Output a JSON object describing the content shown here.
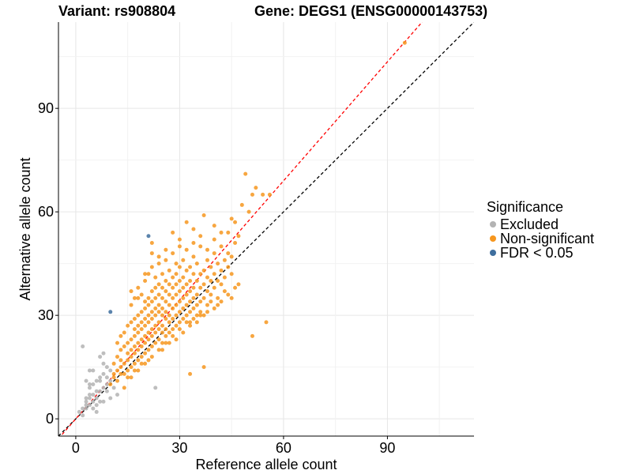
{
  "header": {
    "variant_title": "Variant: rs908804",
    "gene_title": "Gene: DEGS1 (ENSG00000143753)"
  },
  "legend": {
    "title": "Significance",
    "items": [
      {
        "label": "Excluded",
        "color": "#b3b3b3"
      },
      {
        "label": "Non-significant",
        "color": "#f6961e"
      },
      {
        "label": "FDR < 0.05",
        "color": "#3e6e9e"
      }
    ]
  },
  "chart_data": {
    "type": "scatter",
    "title": "Variant: rs908804   Gene: DEGS1 (ENSG00000143753)",
    "xlabel": "Reference allele count",
    "ylabel": "Alternative allele count",
    "xlim": [
      -5,
      115
    ],
    "ylim": [
      -5,
      115
    ],
    "xticks": [
      0,
      30,
      60,
      90
    ],
    "yticks": [
      0,
      30,
      60,
      90
    ],
    "grid": true,
    "legend_position": "right",
    "reference_lines": [
      {
        "name": "identity",
        "slope": 1.0,
        "intercept": 0,
        "color": "#000000",
        "style": "dashed"
      },
      {
        "name": "fit",
        "slope": 1.15,
        "intercept": 0,
        "color": "#ff0000",
        "style": "dashed"
      }
    ],
    "series": [
      {
        "name": "Excluded",
        "color": "#b3b3b3",
        "points": [
          [
            1,
            2
          ],
          [
            2,
            3
          ],
          [
            2,
            1
          ],
          [
            3,
            4
          ],
          [
            3,
            5
          ],
          [
            3,
            6
          ],
          [
            3,
            3
          ],
          [
            4,
            4
          ],
          [
            4,
            6
          ],
          [
            4,
            7
          ],
          [
            4,
            10
          ],
          [
            4,
            14
          ],
          [
            5,
            5
          ],
          [
            5,
            7
          ],
          [
            5,
            10
          ],
          [
            5,
            14
          ],
          [
            6,
            6
          ],
          [
            6,
            8
          ],
          [
            6,
            11
          ],
          [
            6,
            2
          ],
          [
            7,
            5
          ],
          [
            7,
            8
          ],
          [
            7,
            12
          ],
          [
            7,
            18
          ],
          [
            8,
            9
          ],
          [
            8,
            13
          ],
          [
            8,
            19
          ],
          [
            8,
            5
          ],
          [
            9,
            10
          ],
          [
            9,
            15
          ],
          [
            9,
            12
          ],
          [
            9,
            8
          ],
          [
            10,
            6
          ],
          [
            10,
            14
          ],
          [
            10,
            11
          ],
          [
            11,
            9
          ],
          [
            12,
            7
          ],
          [
            2,
            21
          ],
          [
            3,
            11
          ],
          [
            6,
            4
          ],
          [
            23,
            9
          ],
          [
            8,
            16
          ],
          [
            5,
            3
          ],
          [
            4,
            9
          ],
          [
            7,
            11
          ]
        ]
      },
      {
        "name": "Non-significant",
        "color": "#f6961e",
        "points": [
          [
            10,
            10
          ],
          [
            11,
            12
          ],
          [
            11,
            16
          ],
          [
            12,
            11
          ],
          [
            12,
            14
          ],
          [
            12,
            18
          ],
          [
            13,
            13
          ],
          [
            13,
            15
          ],
          [
            13,
            20
          ],
          [
            13,
            24
          ],
          [
            14,
            13
          ],
          [
            14,
            16
          ],
          [
            14,
            21
          ],
          [
            14,
            25
          ],
          [
            15,
            14
          ],
          [
            15,
            17
          ],
          [
            15,
            19
          ],
          [
            15,
            22
          ],
          [
            15,
            27
          ],
          [
            16,
            15
          ],
          [
            16,
            18
          ],
          [
            16,
            20
          ],
          [
            16,
            23
          ],
          [
            16,
            28
          ],
          [
            16,
            33
          ],
          [
            17,
            16
          ],
          [
            17,
            19
          ],
          [
            17,
            21
          ],
          [
            17,
            24
          ],
          [
            17,
            26
          ],
          [
            17,
            29
          ],
          [
            17,
            35
          ],
          [
            18,
            17
          ],
          [
            18,
            20
          ],
          [
            18,
            22
          ],
          [
            18,
            25
          ],
          [
            18,
            27
          ],
          [
            18,
            30
          ],
          [
            18,
            38
          ],
          [
            19,
            18
          ],
          [
            19,
            21
          ],
          [
            19,
            23
          ],
          [
            19,
            26
          ],
          [
            19,
            28
          ],
          [
            19,
            31
          ],
          [
            19,
            36
          ],
          [
            20,
            19
          ],
          [
            20,
            22
          ],
          [
            20,
            24
          ],
          [
            20,
            27
          ],
          [
            20,
            29
          ],
          [
            20,
            32
          ],
          [
            20,
            34
          ],
          [
            20,
            40
          ],
          [
            21,
            20
          ],
          [
            21,
            23
          ],
          [
            21,
            25
          ],
          [
            21,
            28
          ],
          [
            21,
            30
          ],
          [
            21,
            33
          ],
          [
            21,
            35
          ],
          [
            21,
            42
          ],
          [
            22,
            21
          ],
          [
            22,
            24
          ],
          [
            22,
            26
          ],
          [
            22,
            29
          ],
          [
            22,
            31
          ],
          [
            22,
            34
          ],
          [
            22,
            37
          ],
          [
            22,
            44
          ],
          [
            23,
            22
          ],
          [
            23,
            25
          ],
          [
            23,
            27
          ],
          [
            23,
            30
          ],
          [
            23,
            32
          ],
          [
            23,
            35
          ],
          [
            23,
            38
          ],
          [
            23,
            41
          ],
          [
            24,
            23
          ],
          [
            24,
            26
          ],
          [
            24,
            28
          ],
          [
            24,
            31
          ],
          [
            24,
            33
          ],
          [
            24,
            36
          ],
          [
            24,
            39
          ],
          [
            24,
            45
          ],
          [
            25,
            22
          ],
          [
            25,
            25
          ],
          [
            25,
            27
          ],
          [
            25,
            30
          ],
          [
            25,
            32
          ],
          [
            25,
            35
          ],
          [
            25,
            38
          ],
          [
            25,
            42
          ],
          [
            26,
            24
          ],
          [
            26,
            26
          ],
          [
            26,
            29
          ],
          [
            26,
            31
          ],
          [
            26,
            34
          ],
          [
            26,
            37
          ],
          [
            26,
            40
          ],
          [
            26,
            46
          ],
          [
            27,
            25
          ],
          [
            27,
            28
          ],
          [
            27,
            30
          ],
          [
            27,
            33
          ],
          [
            27,
            36
          ],
          [
            27,
            39
          ],
          [
            27,
            43
          ],
          [
            28,
            26
          ],
          [
            28,
            29
          ],
          [
            28,
            32
          ],
          [
            28,
            35
          ],
          [
            28,
            38
          ],
          [
            28,
            41
          ],
          [
            28,
            48
          ],
          [
            29,
            27
          ],
          [
            29,
            30
          ],
          [
            29,
            33
          ],
          [
            29,
            36
          ],
          [
            29,
            39
          ],
          [
            29,
            42
          ],
          [
            29,
            45
          ],
          [
            30,
            28
          ],
          [
            30,
            31
          ],
          [
            30,
            34
          ],
          [
            30,
            37
          ],
          [
            30,
            40
          ],
          [
            30,
            44
          ],
          [
            30,
            52
          ],
          [
            31,
            29
          ],
          [
            31,
            32
          ],
          [
            31,
            35
          ],
          [
            31,
            38
          ],
          [
            31,
            41
          ],
          [
            31,
            46
          ],
          [
            32,
            30
          ],
          [
            32,
            33
          ],
          [
            32,
            36
          ],
          [
            32,
            39
          ],
          [
            32,
            43
          ],
          [
            32,
            49
          ],
          [
            33,
            28
          ],
          [
            33,
            31
          ],
          [
            33,
            34
          ],
          [
            33,
            37
          ],
          [
            33,
            40
          ],
          [
            33,
            44
          ],
          [
            34,
            32
          ],
          [
            34,
            35
          ],
          [
            34,
            38
          ],
          [
            34,
            42
          ],
          [
            34,
            47
          ],
          [
            34,
            55
          ],
          [
            35,
            30
          ],
          [
            35,
            33
          ],
          [
            35,
            36
          ],
          [
            35,
            40
          ],
          [
            35,
            45
          ],
          [
            36,
            31
          ],
          [
            36,
            34
          ],
          [
            36,
            38
          ],
          [
            36,
            42
          ],
          [
            36,
            50
          ],
          [
            37,
            35
          ],
          [
            37,
            39
          ],
          [
            37,
            43
          ],
          [
            37,
            59
          ],
          [
            38,
            33
          ],
          [
            38,
            37
          ],
          [
            38,
            41
          ],
          [
            38,
            46
          ],
          [
            39,
            36
          ],
          [
            39,
            40
          ],
          [
            39,
            44
          ],
          [
            40,
            38
          ],
          [
            40,
            42
          ],
          [
            40,
            48
          ],
          [
            40,
            56
          ],
          [
            41,
            35
          ],
          [
            41,
            40
          ],
          [
            41,
            45
          ],
          [
            42,
            39
          ],
          [
            42,
            43
          ],
          [
            42,
            50
          ],
          [
            43,
            41
          ],
          [
            43,
            46
          ],
          [
            44,
            44
          ],
          [
            44,
            48
          ],
          [
            44,
            54
          ],
          [
            45,
            42
          ],
          [
            45,
            47
          ],
          [
            45,
            58
          ],
          [
            46,
            51
          ],
          [
            47,
            53
          ],
          [
            48,
            62
          ],
          [
            49,
            71
          ],
          [
            50,
            60
          ],
          [
            51,
            65
          ],
          [
            51,
            24
          ],
          [
            52,
            67
          ],
          [
            54,
            65
          ],
          [
            55,
            28
          ],
          [
            56,
            65
          ],
          [
            95,
            109
          ],
          [
            14,
            9
          ],
          [
            16,
            12
          ],
          [
            18,
            14
          ],
          [
            20,
            16
          ],
          [
            22,
            18
          ],
          [
            24,
            20
          ],
          [
            26,
            22
          ],
          [
            28,
            24
          ],
          [
            30,
            26
          ],
          [
            32,
            28
          ],
          [
            34,
            29
          ],
          [
            36,
            30
          ],
          [
            38,
            31
          ],
          [
            40,
            32
          ],
          [
            42,
            34
          ],
          [
            44,
            36
          ],
          [
            46,
            38
          ],
          [
            12,
            22
          ],
          [
            11,
            13
          ],
          [
            13,
            17
          ],
          [
            15,
            12
          ],
          [
            17,
            14
          ],
          [
            19,
            16
          ],
          [
            21,
            17
          ],
          [
            25,
            20
          ],
          [
            27,
            22
          ],
          [
            29,
            23
          ],
          [
            31,
            25
          ],
          [
            33,
            27
          ],
          [
            35,
            28
          ],
          [
            37,
            30
          ],
          [
            39,
            34
          ],
          [
            41,
            33
          ],
          [
            43,
            37
          ],
          [
            45,
            35
          ],
          [
            47,
            39
          ],
          [
            33,
            13
          ],
          [
            37,
            15
          ],
          [
            22,
            51
          ],
          [
            24,
            47
          ],
          [
            26,
            49
          ],
          [
            28,
            54
          ],
          [
            36,
            53
          ],
          [
            38,
            49
          ],
          [
            42,
            54
          ],
          [
            46,
            57
          ],
          [
            16,
            37
          ],
          [
            18,
            35
          ],
          [
            20,
            42
          ],
          [
            22,
            48
          ],
          [
            30,
            50
          ],
          [
            32,
            57
          ],
          [
            34,
            51
          ],
          [
            40,
            52
          ]
        ]
      },
      {
        "name": "FDR < 0.05",
        "color": "#3e6e9e",
        "points": [
          [
            10,
            31
          ],
          [
            21,
            53
          ]
        ]
      }
    ]
  }
}
